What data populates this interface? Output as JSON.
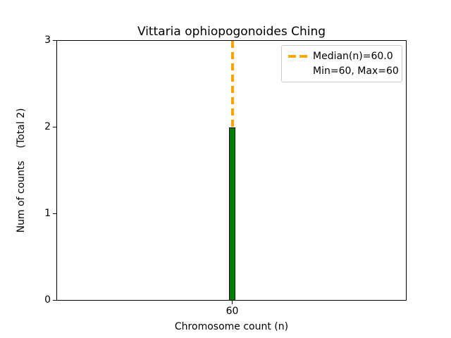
{
  "chart_data": {
    "type": "bar",
    "title": "Vittaria ophiopogonoides Ching",
    "xlabel": "Chromosome count (n)",
    "ylabel": "Num of counts    (Total 2)",
    "categories": [
      60
    ],
    "values": [
      2
    ],
    "total": 2,
    "median": 60.0,
    "min": 60,
    "max": 60,
    "ylim": [
      0,
      3
    ],
    "yticks": [
      0,
      1,
      2,
      3
    ],
    "ytick_labels": [
      "0",
      "1",
      "2",
      "3"
    ],
    "xtick_labels": [
      "60"
    ],
    "grid": false,
    "legend": {
      "position": "upper right",
      "entries": [
        {
          "label": "Median(n)=60.0",
          "handle": "dashed-line",
          "color": "#FFA500"
        },
        {
          "label": "Min=60, Max=60",
          "handle": "none"
        }
      ]
    },
    "colors": {
      "bar_fill": "#008000",
      "bar_edge": "#000000",
      "median_line": "#FFA500",
      "legend_border": "#CCCCCC",
      "text": "#000000",
      "background": "#FFFFFF"
    }
  }
}
